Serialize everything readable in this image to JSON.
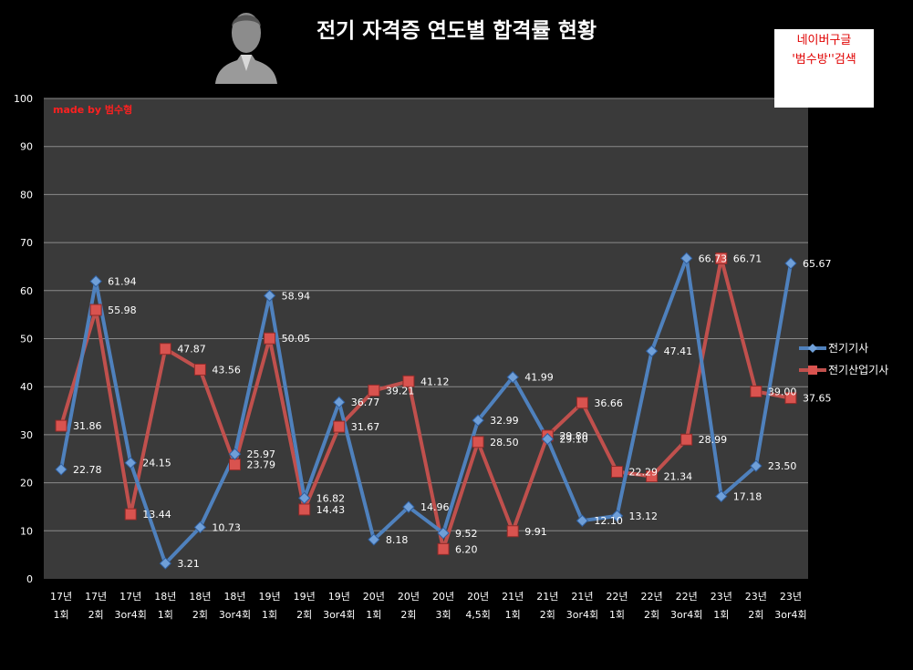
{
  "header": {
    "title": "전기 자격증 연도별 합격률 현황",
    "note_line1": "네이버구글",
    "note_line2": "'범수방''검색",
    "credit": "made by  범수형"
  },
  "chart_data": {
    "type": "line",
    "title": "전기 자격증 연도별 합격률 현황",
    "categories": [
      [
        "17년",
        "1회"
      ],
      [
        "17년",
        "2회"
      ],
      [
        "17년",
        "3or4회"
      ],
      [
        "18년",
        "1회"
      ],
      [
        "18년",
        "2회"
      ],
      [
        "18년",
        "3or4회"
      ],
      [
        "19년",
        "1회"
      ],
      [
        "19년",
        "2회"
      ],
      [
        "19년",
        "3or4회"
      ],
      [
        "20년",
        "1회"
      ],
      [
        "20년",
        "2회"
      ],
      [
        "20년",
        "3회"
      ],
      [
        "20년",
        "4,5회"
      ],
      [
        "21년",
        "1회"
      ],
      [
        "21년",
        "2회"
      ],
      [
        "21년",
        "3or4회"
      ],
      [
        "22년",
        "1회"
      ],
      [
        "22년",
        "2회"
      ],
      [
        "22년",
        "3or4회"
      ],
      [
        "23년",
        "1회"
      ],
      [
        "23년",
        "2회"
      ],
      [
        "23년",
        "3or4회"
      ]
    ],
    "series": [
      {
        "name": "전기기사",
        "color": "#4f81bd",
        "marker": "diamond",
        "values": [
          22.78,
          61.94,
          24.15,
          3.21,
          10.73,
          25.97,
          58.94,
          16.82,
          36.77,
          8.18,
          14.96,
          9.52,
          32.99,
          41.99,
          29.1,
          12.1,
          13.12,
          47.41,
          66.73,
          17.18,
          23.5,
          65.67
        ]
      },
      {
        "name": "전기산업기사",
        "color": "#c0504d",
        "marker": "square",
        "values": [
          31.86,
          55.98,
          13.44,
          47.87,
          43.56,
          23.79,
          50.05,
          14.43,
          31.67,
          39.21,
          41.12,
          6.2,
          28.5,
          9.91,
          29.8,
          36.66,
          22.29,
          21.34,
          28.99,
          66.71,
          39.0,
          37.65
        ]
      }
    ],
    "labels_electric": [
      "22.78",
      "61.94",
      "24.15",
      "3.21",
      "10.73",
      "25.97",
      "58.94",
      "16.82",
      "36.77",
      "8.18",
      "14.96",
      "9.52",
      "32.99",
      "41.99",
      "29.10",
      "12.10",
      "13.12",
      "47.41",
      "66.73",
      "17.18",
      "23.50",
      "65.67"
    ],
    "labels_industrial": [
      "31.86",
      "55.98",
      "13.44",
      "47.87",
      "43.56",
      "23.79",
      "50.05",
      "14.43",
      "31.67",
      "39.21",
      "41.12",
      "6.20",
      "28.50",
      "9.91",
      "29.80",
      "36.66",
      "22.29",
      "21.34",
      "28.99",
      "66.71",
      "39.00",
      "37.65"
    ],
    "ylim": [
      0,
      100
    ],
    "yticks": [
      "0",
      "10",
      "20",
      "30",
      "40",
      "50",
      "60",
      "70",
      "80",
      "90",
      "100"
    ],
    "grid": true,
    "legend": "right",
    "background": "#3a3a3a"
  }
}
